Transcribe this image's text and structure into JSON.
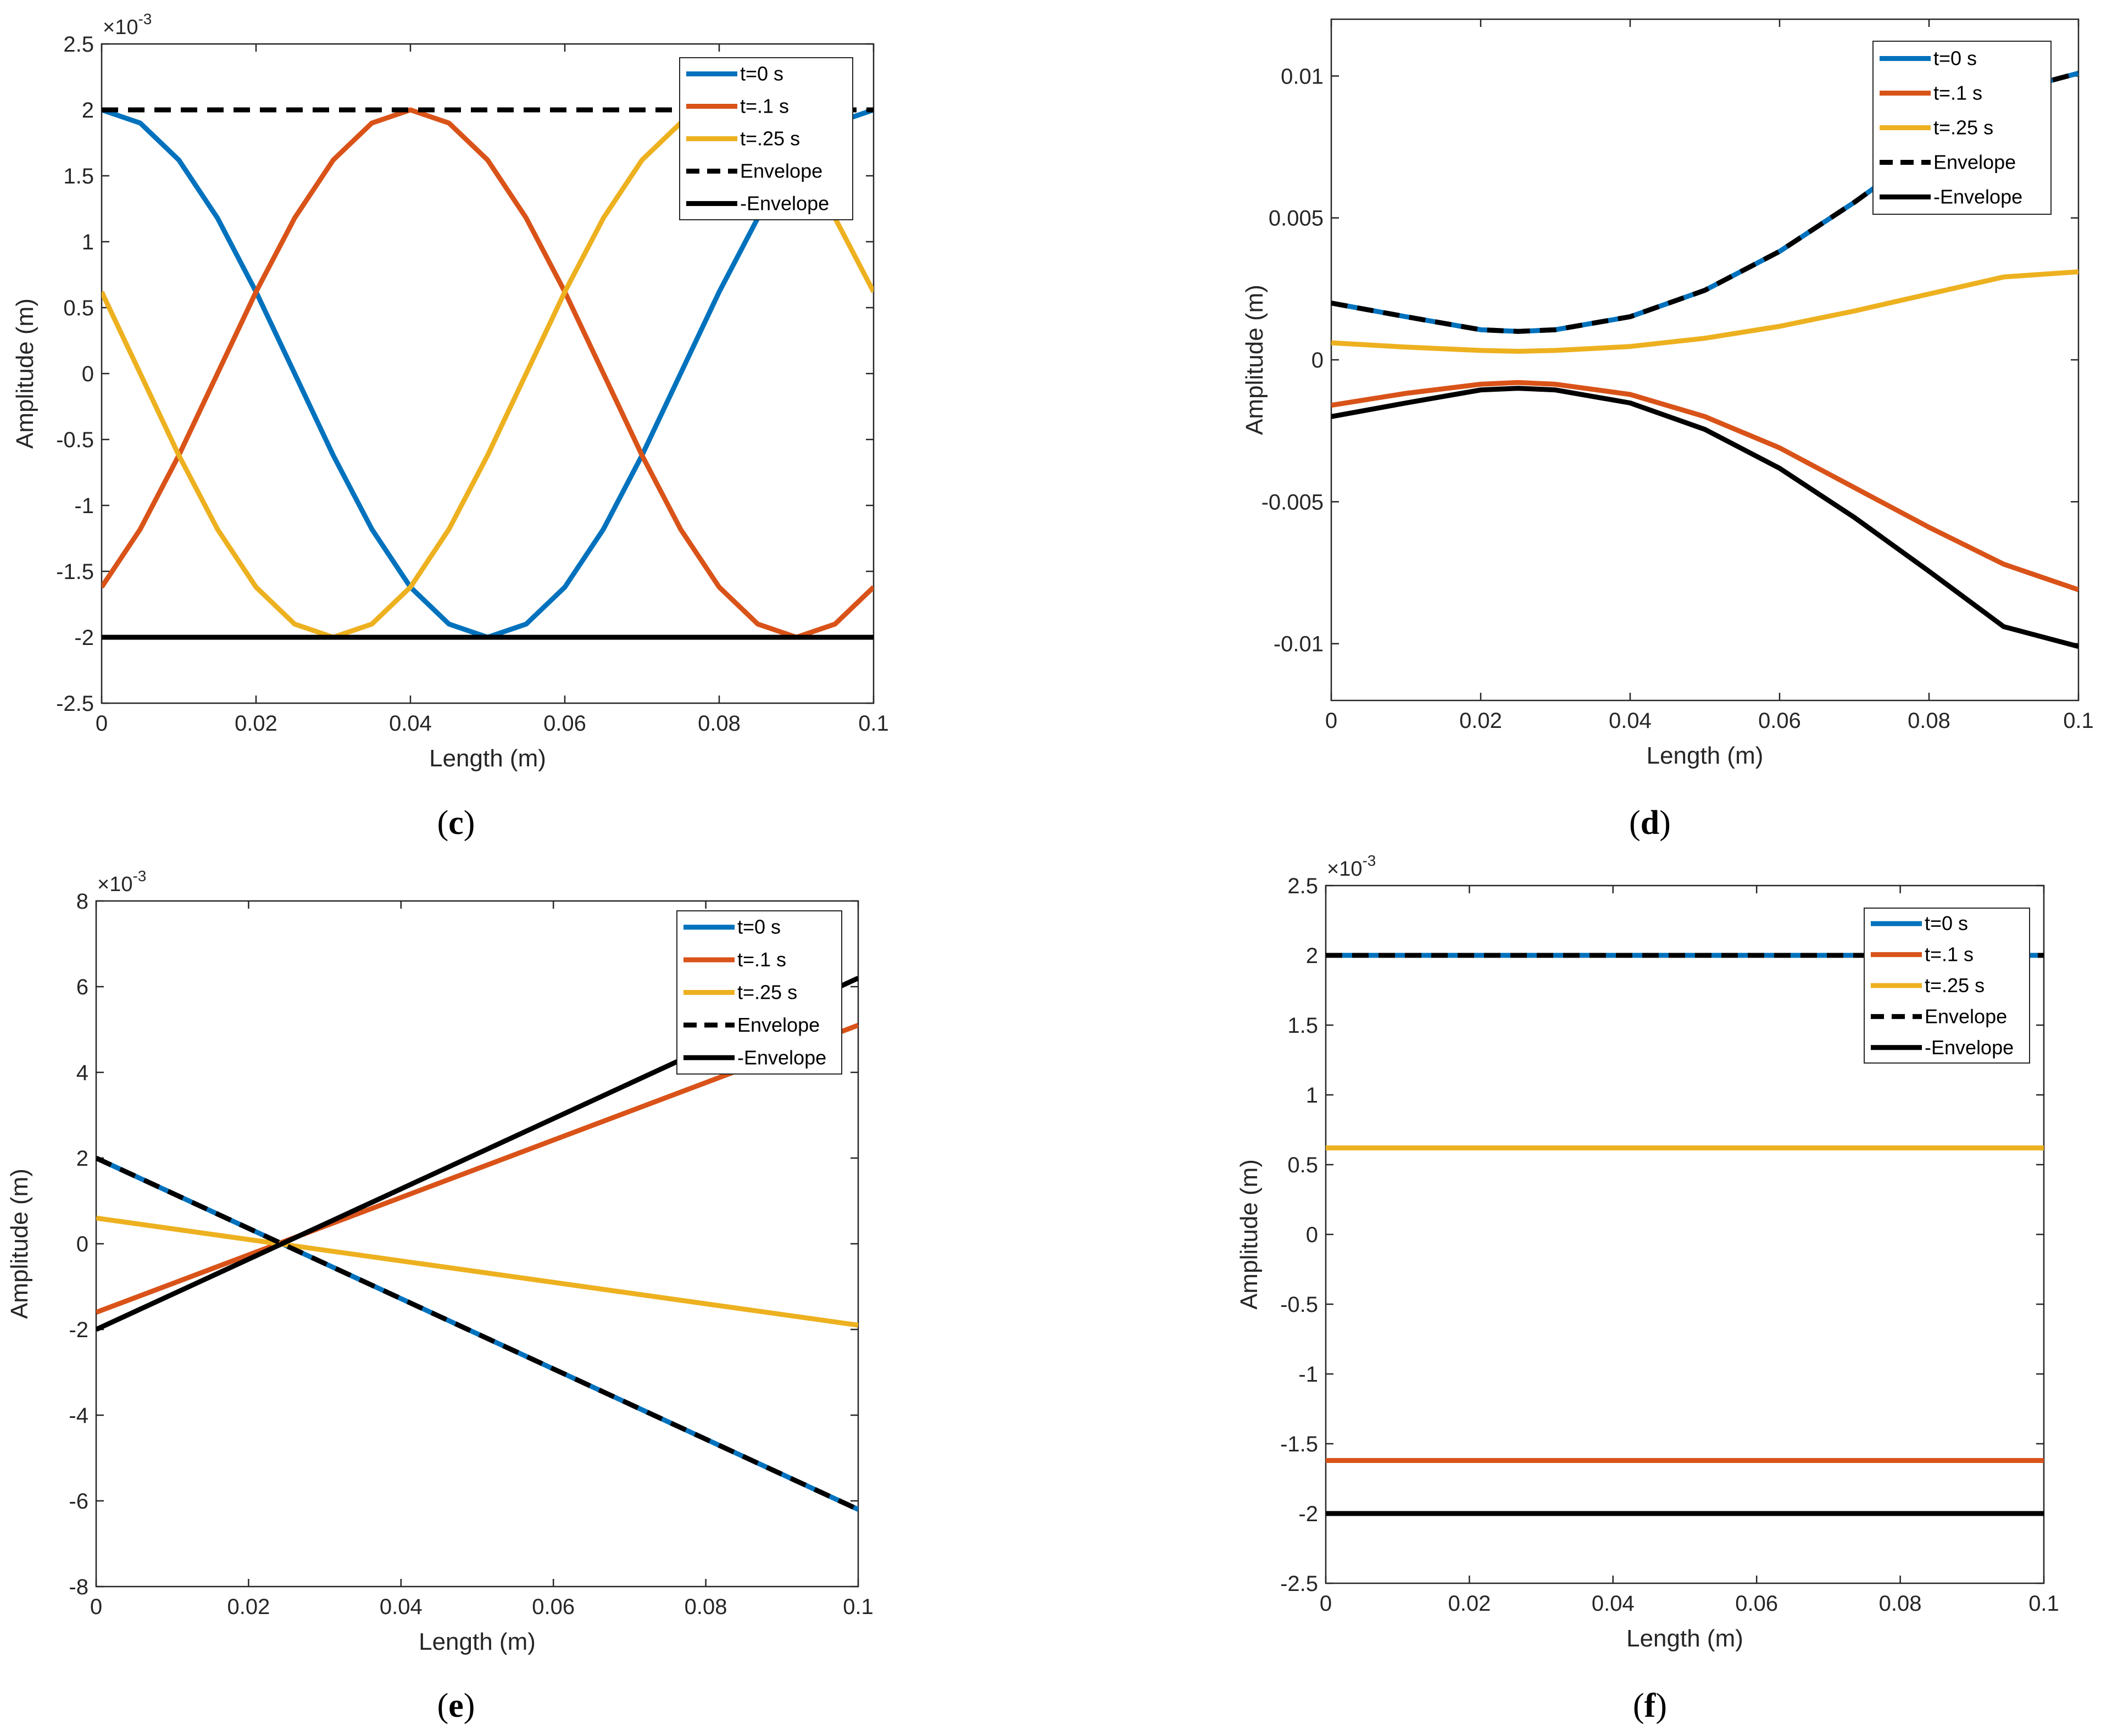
{
  "figure": {
    "panel_labels": [
      "c",
      "d",
      "e",
      "f"
    ]
  },
  "colors": {
    "t0": "#0072BD",
    "t01": "#D95319",
    "t025": "#EDB120",
    "envelope": "#000000"
  },
  "chart_data": [
    {
      "id": "c",
      "type": "line",
      "title": "",
      "xlabel": "Length (m)",
      "ylabel": "Amplitude (m)",
      "exponent_label": "×10",
      "exponent_power": "-3",
      "xlim": [
        0,
        0.1
      ],
      "ylim": [
        -2.5,
        2.5
      ],
      "xticks": [
        0,
        0.02,
        0.04,
        0.06,
        0.08,
        0.1
      ],
      "xtick_labels": [
        "0",
        "0.02",
        "0.04",
        "0.06",
        "0.08",
        "0.1"
      ],
      "yticks": [
        2.5,
        2,
        1.5,
        1,
        0.5,
        0,
        -0.5,
        -1,
        -1.5,
        -2,
        -2.5
      ],
      "ytick_labels": [
        "2.5",
        "2",
        "1.5",
        "1",
        "0.5",
        "0",
        "-0.5",
        "-1",
        "-1.5",
        "-2",
        "-2.5"
      ],
      "legend_position": "top-right",
      "series": [
        {
          "name": "t=0 s",
          "color": "#0072BD",
          "style": "solid",
          "x": [
            0,
            0.005,
            0.01,
            0.015,
            0.02,
            0.025,
            0.03,
            0.035,
            0.04,
            0.045,
            0.05,
            0.055,
            0.06,
            0.065,
            0.07,
            0.075,
            0.08,
            0.085,
            0.09,
            0.095,
            0.1
          ],
          "y": [
            2,
            1.9,
            1.62,
            1.18,
            0.62,
            0,
            -0.62,
            -1.18,
            -1.62,
            -1.9,
            -2,
            -1.9,
            -1.62,
            -1.18,
            -0.62,
            0,
            0.62,
            1.18,
            1.62,
            1.9,
            2
          ]
        },
        {
          "name": "t=.1 s",
          "color": "#D95319",
          "style": "solid",
          "x": [
            0,
            0.005,
            0.01,
            0.015,
            0.02,
            0.025,
            0.03,
            0.035,
            0.04,
            0.045,
            0.05,
            0.055,
            0.06,
            0.065,
            0.07,
            0.075,
            0.08,
            0.085,
            0.09,
            0.095,
            0.1
          ],
          "y": [
            -1.62,
            -1.18,
            -0.62,
            0,
            0.62,
            1.18,
            1.62,
            1.9,
            2,
            1.9,
            1.62,
            1.18,
            0.62,
            0,
            -0.62,
            -1.18,
            -1.62,
            -1.9,
            -2,
            -1.9,
            -1.62
          ]
        },
        {
          "name": "t=.25 s",
          "color": "#EDB120",
          "style": "solid",
          "x": [
            0,
            0.005,
            0.01,
            0.015,
            0.02,
            0.025,
            0.03,
            0.035,
            0.04,
            0.045,
            0.05,
            0.055,
            0.06,
            0.065,
            0.07,
            0.075,
            0.08,
            0.085,
            0.09,
            0.095,
            0.1
          ],
          "y": [
            0.62,
            0,
            -0.62,
            -1.18,
            -1.62,
            -1.9,
            -2,
            -1.9,
            -1.62,
            -1.18,
            -0.62,
            0,
            0.62,
            1.18,
            1.62,
            1.9,
            2,
            1.9,
            1.62,
            1.18,
            0.62
          ]
        },
        {
          "name": "Envelope",
          "color": "#000000",
          "style": "dashed",
          "x": [
            0,
            0.1
          ],
          "y": [
            2,
            2
          ]
        },
        {
          "name": "-Envelope",
          "color": "#000000",
          "style": "solid",
          "x": [
            0,
            0.1
          ],
          "y": [
            -2,
            -2
          ]
        }
      ]
    },
    {
      "id": "d",
      "type": "line",
      "title": "",
      "xlabel": "Length (m)",
      "ylabel": "Amplitude (m)",
      "exponent_label": "",
      "exponent_power": "",
      "xlim": [
        0,
        0.1
      ],
      "ylim": [
        -0.012,
        0.012
      ],
      "xticks": [
        0,
        0.02,
        0.04,
        0.06,
        0.08,
        0.1
      ],
      "xtick_labels": [
        "0",
        "0.02",
        "0.04",
        "0.06",
        "0.08",
        "0.1"
      ],
      "yticks": [
        0.01,
        0.005,
        0,
        -0.005,
        -0.01
      ],
      "ytick_labels": [
        "0.01",
        "0.005",
        "0",
        "-0.005",
        "-0.01"
      ],
      "legend_position": "top-right",
      "series": [
        {
          "name": "t=0 s",
          "color": "#0072BD",
          "style": "solid",
          "x": [
            0,
            0.01,
            0.02,
            0.025,
            0.03,
            0.04,
            0.05,
            0.06,
            0.07,
            0.08,
            0.09,
            0.1
          ],
          "y": [
            0.002,
            0.00152,
            0.00106,
            0.001,
            0.00106,
            0.00152,
            0.00245,
            0.00382,
            0.00555,
            0.00745,
            0.0094,
            0.0101
          ]
        },
        {
          "name": "t=.1 s",
          "color": "#D95319",
          "style": "solid",
          "x": [
            0,
            0.01,
            0.02,
            0.025,
            0.03,
            0.04,
            0.05,
            0.06,
            0.07,
            0.08,
            0.09,
            0.1
          ],
          "y": [
            -0.0016,
            -0.00118,
            -0.00086,
            -0.0008,
            -0.00086,
            -0.00122,
            -0.002,
            -0.0031,
            -0.0045,
            -0.0059,
            -0.0072,
            -0.0081
          ]
        },
        {
          "name": "t=.25 s",
          "color": "#EDB120",
          "style": "solid",
          "x": [
            0,
            0.01,
            0.02,
            0.025,
            0.03,
            0.04,
            0.05,
            0.06,
            0.07,
            0.08,
            0.09,
            0.1
          ],
          "y": [
            0.0006,
            0.00045,
            0.00033,
            0.0003,
            0.00033,
            0.00047,
            0.00076,
            0.00118,
            0.00172,
            0.00232,
            0.00292,
            0.0031
          ]
        },
        {
          "name": "Envelope",
          "color": "#000000",
          "style": "dashed",
          "x": [
            0,
            0.01,
            0.02,
            0.025,
            0.03,
            0.04,
            0.05,
            0.06,
            0.07,
            0.08,
            0.09,
            0.1
          ],
          "y": [
            0.002,
            0.00152,
            0.00106,
            0.001,
            0.00106,
            0.00152,
            0.00245,
            0.00382,
            0.00555,
            0.00745,
            0.0094,
            0.0101
          ]
        },
        {
          "name": "-Envelope",
          "color": "#000000",
          "style": "solid",
          "x": [
            0,
            0.01,
            0.02,
            0.025,
            0.03,
            0.04,
            0.05,
            0.06,
            0.07,
            0.08,
            0.09,
            0.1
          ],
          "y": [
            -0.002,
            -0.00152,
            -0.00106,
            -0.001,
            -0.00106,
            -0.00152,
            -0.00245,
            -0.00382,
            -0.00555,
            -0.00745,
            -0.0094,
            -0.0101
          ]
        }
      ]
    },
    {
      "id": "e",
      "type": "line",
      "title": "",
      "xlabel": "Length (m)",
      "ylabel": "Amplitude (m)",
      "exponent_label": "×10",
      "exponent_power": "-3",
      "xlim": [
        0,
        0.1
      ],
      "ylim": [
        -8,
        8
      ],
      "xticks": [
        0,
        0.02,
        0.04,
        0.06,
        0.08,
        0.1
      ],
      "xtick_labels": [
        "0",
        "0.02",
        "0.04",
        "0.06",
        "0.08",
        "0.1"
      ],
      "yticks": [
        8,
        6,
        4,
        2,
        0,
        -2,
        -4,
        -6,
        -8
      ],
      "ytick_labels": [
        "8",
        "6",
        "4",
        "2",
        "0",
        "-2",
        "-4",
        "-6",
        "-8"
      ],
      "legend_position": "top-right",
      "series": [
        {
          "name": "t=0 s",
          "color": "#0072BD",
          "style": "solid",
          "x": [
            0,
            0.1
          ],
          "y": [
            2,
            -6.2
          ]
        },
        {
          "name": "t=.1 s",
          "color": "#D95319",
          "style": "solid",
          "x": [
            0,
            0.1
          ],
          "y": [
            -1.6,
            5.1
          ]
        },
        {
          "name": "t=.25 s",
          "color": "#EDB120",
          "style": "solid",
          "x": [
            0,
            0.1
          ],
          "y": [
            0.6,
            -1.9
          ]
        },
        {
          "name": "Envelope",
          "color": "#000000",
          "style": "dashed",
          "x": [
            0,
            0.1
          ],
          "y": [
            2,
            -6.2
          ]
        },
        {
          "name": "-Envelope",
          "color": "#000000",
          "style": "solid",
          "x": [
            0,
            0.1
          ],
          "y": [
            -2,
            6.2
          ]
        }
      ]
    },
    {
      "id": "f",
      "type": "line",
      "title": "",
      "xlabel": "Length (m)",
      "ylabel": "Amplitude (m)",
      "exponent_label": "×10",
      "exponent_power": "-3",
      "xlim": [
        0,
        0.1
      ],
      "ylim": [
        -2.5,
        2.5
      ],
      "xticks": [
        0,
        0.02,
        0.04,
        0.06,
        0.08,
        0.1
      ],
      "xtick_labels": [
        "0",
        "0.02",
        "0.04",
        "0.06",
        "0.08",
        "0.1"
      ],
      "yticks": [
        2.5,
        2,
        1.5,
        1,
        0.5,
        0,
        -0.5,
        -1,
        -1.5,
        -2,
        -2.5
      ],
      "ytick_labels": [
        "2.5",
        "2",
        "1.5",
        "1",
        "0.5",
        "0",
        "-0.5",
        "-1",
        "-1.5",
        "-2",
        "-2.5"
      ],
      "legend_position": "top-right",
      "series": [
        {
          "name": "t=0 s",
          "color": "#0072BD",
          "style": "solid",
          "x": [
            0,
            0.1
          ],
          "y": [
            2,
            2
          ]
        },
        {
          "name": "t=.1 s",
          "color": "#D95319",
          "style": "solid",
          "x": [
            0,
            0.1
          ],
          "y": [
            -1.62,
            -1.62
          ]
        },
        {
          "name": "t=.25 s",
          "color": "#EDB120",
          "style": "solid",
          "x": [
            0,
            0.1
          ],
          "y": [
            0.62,
            0.62
          ]
        },
        {
          "name": "Envelope",
          "color": "#000000",
          "style": "dashed",
          "x": [
            0,
            0.1
          ],
          "y": [
            2,
            2
          ]
        },
        {
          "name": "-Envelope",
          "color": "#000000",
          "style": "solid",
          "x": [
            0,
            0.1
          ],
          "y": [
            -2,
            -2
          ]
        }
      ]
    }
  ]
}
